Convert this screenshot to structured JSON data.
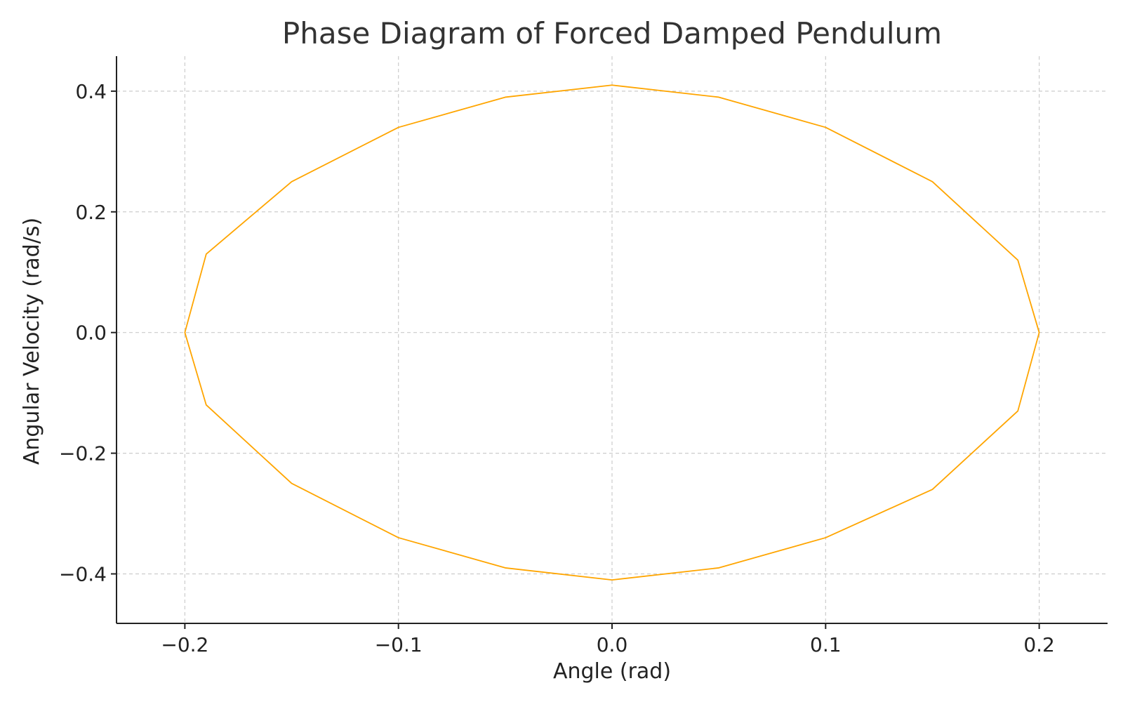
{
  "chart_data": {
    "type": "line",
    "title": "Phase Diagram of Forced Damped Pendulum",
    "xlabel": "Angle (rad)",
    "ylabel": "Angular Velocity (rad/s)",
    "xlim": [
      -0.232,
      0.232
    ],
    "ylim": [
      -0.482,
      0.458
    ],
    "xticks": [
      -0.2,
      -0.1,
      0.0,
      0.1,
      0.2
    ],
    "xtick_labels": [
      "−0.2",
      "−0.1",
      "0.0",
      "0.1",
      "0.2"
    ],
    "yticks": [
      0.4,
      0.2,
      0.0,
      -0.2,
      -0.4
    ],
    "ytick_labels": [
      "0.4",
      "0.2",
      "0.0",
      "−0.2",
      "−0.4"
    ],
    "grid": true,
    "line_color": "#FFA500",
    "series": [
      {
        "x": [
          0.0,
          0.05,
          0.1,
          0.15,
          0.19,
          0.2,
          0.19,
          0.15,
          0.1,
          0.05,
          0.0,
          -0.05,
          -0.1,
          -0.15,
          -0.19,
          -0.2,
          -0.19,
          -0.15,
          -0.1,
          -0.05,
          0.0
        ],
        "y": [
          0.41,
          0.39,
          0.34,
          0.25,
          0.12,
          0.0,
          -0.13,
          -0.26,
          -0.34,
          -0.39,
          -0.41,
          -0.39,
          -0.34,
          -0.25,
          -0.12,
          0.0,
          0.13,
          0.25,
          0.34,
          0.39,
          0.41
        ]
      }
    ]
  }
}
